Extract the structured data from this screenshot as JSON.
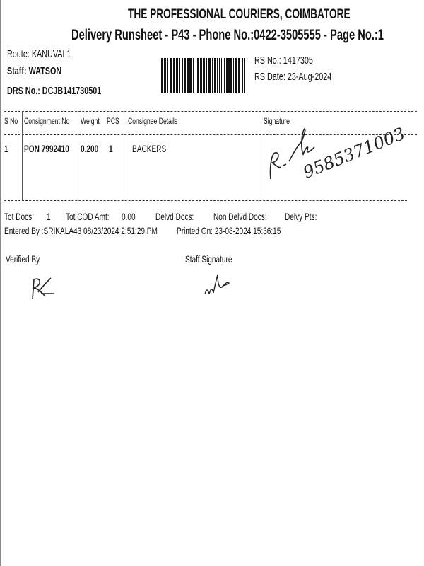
{
  "header": {
    "company": "THE PROFESSIONAL COURIERS, COIMBATORE",
    "subtitle": "Delivery Runsheet - P43 - Phone No.:0422-3505555 - Page No.:1"
  },
  "info": {
    "route": "Route: KANUVAI 1",
    "staff": "Staff: WATSON",
    "drs_no": "DRS No.: DCJB141730501",
    "rs_no": "RS No.: 1417305",
    "rs_date": "RS Date: 23-Aug-2024"
  },
  "table": {
    "headers": [
      "S No",
      "Consignment No",
      "Weight",
      "PCS",
      "Consignee Details",
      "Signature"
    ],
    "rows": [
      {
        "sno": "1",
        "consignment": "PON 7992410",
        "weight": "0.200",
        "pcs": "1",
        "consignee": "BACKERS",
        "handwritten_phone": "9585371003"
      }
    ]
  },
  "summary": {
    "tot_docs_label": "Tot Docs:",
    "tot_docs": "1",
    "tot_cod_label": "Tot COD Amt:",
    "tot_cod": "0.00",
    "delvd_docs_label": "Delvd Docs:",
    "non_delvd_label": "Non Delvd Docs:",
    "delvy_pts_label": "Delvy Pts:",
    "entered_by": "Entered By :SRIKALA43 08/23/2024 2:51:29 PM",
    "printed_on": "Printed On: 23-08-2024 15:36:15"
  },
  "footer": {
    "verified_by": "Verified By",
    "staff_signature": "Staff Signature"
  }
}
